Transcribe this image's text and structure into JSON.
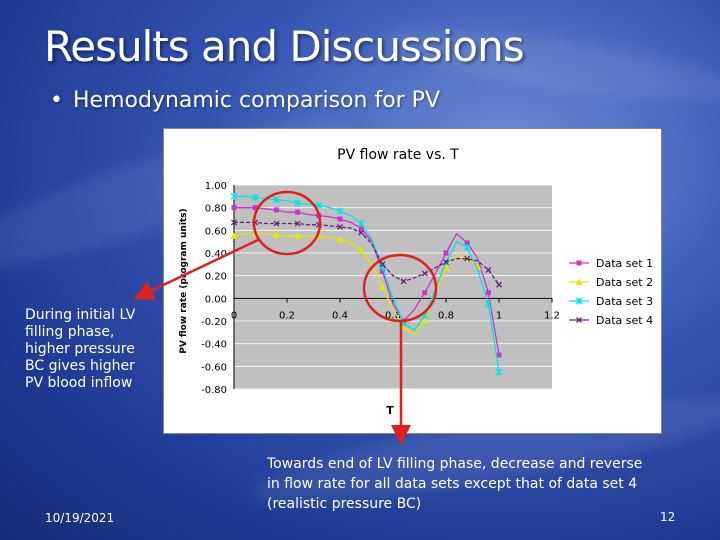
{
  "slide": {
    "title": "Results and Discussions",
    "bullet": "Hemodynamic comparison for PV",
    "bullet_marker": "•",
    "note_left": "During initial LV filling phase, higher pressure BC gives higher PV blood inflow",
    "note_bottom": "Towards end of LV filling phase, decrease and reverse in flow rate for all data sets except that of data set 4 (realistic pressure BC)",
    "date": "10/19/2021",
    "page": "12",
    "annotation_color": "#e0201a"
  },
  "chart_data": {
    "type": "line",
    "title": "PV flow rate vs. T",
    "xlabel": "T",
    "ylabel": "PV flow rate (program units)",
    "xlim": [
      0,
      1.2
    ],
    "ylim": [
      -0.8,
      1.0
    ],
    "x_ticks": [
      "0",
      "0.2",
      "0.4",
      "0.6",
      "0.8",
      "1",
      "1.2"
    ],
    "y_ticks": [
      "1.00",
      "0.80",
      "0.60",
      "0.40",
      "0.20",
      "0.00",
      "-0.20",
      "-0.40",
      "-0.60",
      "-0.80"
    ],
    "grid": "horizontal",
    "plot_background": "#c0c0c0",
    "legend_position": "right",
    "series": [
      {
        "name": "Data set 1",
        "color": "#cc33cc",
        "marker": "square",
        "points": [
          [
            0,
            0.8
          ],
          [
            0.04,
            0.8
          ],
          [
            0.08,
            0.8
          ],
          [
            0.12,
            0.79
          ],
          [
            0.16,
            0.78
          ],
          [
            0.2,
            0.76
          ],
          [
            0.24,
            0.76
          ],
          [
            0.28,
            0.74
          ],
          [
            0.32,
            0.73
          ],
          [
            0.36,
            0.72
          ],
          [
            0.4,
            0.7
          ],
          [
            0.44,
            0.67
          ],
          [
            0.48,
            0.62
          ],
          [
            0.52,
            0.5
          ],
          [
            0.56,
            0.24
          ],
          [
            0.6,
            -0.05
          ],
          [
            0.64,
            -0.2
          ],
          [
            0.68,
            -0.1
          ],
          [
            0.72,
            0.05
          ],
          [
            0.76,
            0.22
          ],
          [
            0.8,
            0.4
          ],
          [
            0.84,
            0.57
          ],
          [
            0.88,
            0.49
          ],
          [
            0.92,
            0.35
          ],
          [
            0.96,
            0.05
          ],
          [
            1.0,
            -0.5
          ]
        ]
      },
      {
        "name": "Data set 2",
        "color": "#e6e600",
        "marker": "triangle",
        "points": [
          [
            0,
            0.55
          ],
          [
            0.04,
            0.57
          ],
          [
            0.08,
            0.57
          ],
          [
            0.12,
            0.57
          ],
          [
            0.16,
            0.56
          ],
          [
            0.2,
            0.55
          ],
          [
            0.24,
            0.55
          ],
          [
            0.28,
            0.55
          ],
          [
            0.32,
            0.55
          ],
          [
            0.36,
            0.54
          ],
          [
            0.4,
            0.52
          ],
          [
            0.44,
            0.49
          ],
          [
            0.48,
            0.42
          ],
          [
            0.52,
            0.3
          ],
          [
            0.56,
            0.1
          ],
          [
            0.6,
            -0.1
          ],
          [
            0.64,
            -0.25
          ],
          [
            0.68,
            -0.32
          ],
          [
            0.72,
            -0.2
          ],
          [
            0.76,
            0.05
          ],
          [
            0.8,
            0.27
          ],
          [
            0.84,
            0.38
          ],
          [
            0.88,
            0.35
          ],
          [
            0.92,
            0.28
          ]
        ]
      },
      {
        "name": "Data set 3",
        "color": "#00e5e5",
        "marker": "star",
        "points": [
          [
            0,
            0.9
          ],
          [
            0.04,
            0.9
          ],
          [
            0.08,
            0.89
          ],
          [
            0.12,
            0.88
          ],
          [
            0.16,
            0.87
          ],
          [
            0.2,
            0.86
          ],
          [
            0.24,
            0.84
          ],
          [
            0.28,
            0.83
          ],
          [
            0.32,
            0.82
          ],
          [
            0.36,
            0.8
          ],
          [
            0.4,
            0.77
          ],
          [
            0.44,
            0.73
          ],
          [
            0.48,
            0.66
          ],
          [
            0.52,
            0.52
          ],
          [
            0.56,
            0.28
          ],
          [
            0.6,
            0.0
          ],
          [
            0.64,
            -0.22
          ],
          [
            0.68,
            -0.28
          ],
          [
            0.72,
            -0.15
          ],
          [
            0.76,
            0.08
          ],
          [
            0.8,
            0.32
          ],
          [
            0.84,
            0.5
          ],
          [
            0.88,
            0.45
          ],
          [
            0.92,
            0.25
          ],
          [
            0.96,
            -0.05
          ],
          [
            1.0,
            -0.65
          ]
        ]
      },
      {
        "name": "Data set 4",
        "color": "#6b1f7a",
        "marker": "x",
        "points": [
          [
            0,
            0.67
          ],
          [
            0.04,
            0.67
          ],
          [
            0.08,
            0.67
          ],
          [
            0.12,
            0.66
          ],
          [
            0.16,
            0.66
          ],
          [
            0.2,
            0.66
          ],
          [
            0.24,
            0.66
          ],
          [
            0.28,
            0.65
          ],
          [
            0.32,
            0.65
          ],
          [
            0.36,
            0.64
          ],
          [
            0.4,
            0.63
          ],
          [
            0.44,
            0.62
          ],
          [
            0.48,
            0.58
          ],
          [
            0.52,
            0.48
          ],
          [
            0.56,
            0.3
          ],
          [
            0.6,
            0.2
          ],
          [
            0.64,
            0.15
          ],
          [
            0.68,
            0.18
          ],
          [
            0.72,
            0.22
          ],
          [
            0.76,
            0.27
          ],
          [
            0.8,
            0.32
          ],
          [
            0.84,
            0.35
          ],
          [
            0.88,
            0.35
          ],
          [
            0.92,
            0.33
          ],
          [
            0.96,
            0.25
          ],
          [
            1.0,
            0.12
          ]
        ]
      }
    ]
  }
}
